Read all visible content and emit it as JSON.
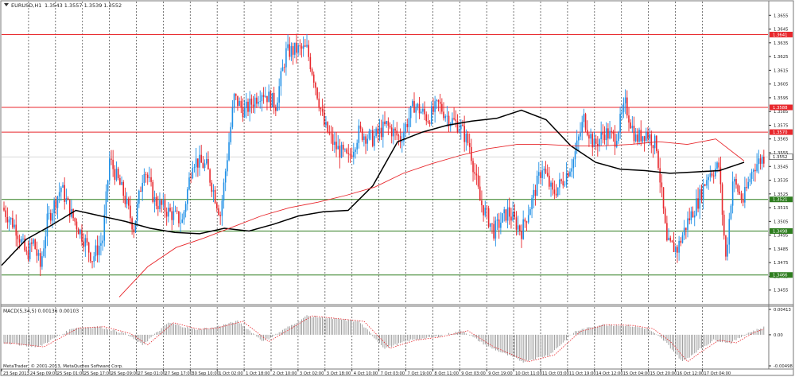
{
  "header": {
    "symbol": "EURUSD,H1",
    "quote": "1.3543 1.3557 1.3539 1.3552"
  },
  "macd_header": "MACD(5,34,5) 0.00136 0.00103",
  "footer": "MetaTrader, © 2001-2013, MetaQuotes Software Corp.",
  "chart_data": [
    {
      "type": "candlestick",
      "panel": "price",
      "ylim": [
        1.3445,
        1.3665
      ],
      "y_ticks": [
        "1.3655",
        "1.3645",
        "1.3635",
        "1.3625",
        "1.3615",
        "1.3605",
        "1.3595",
        "1.3585",
        "1.3575",
        "1.3565",
        "1.3555",
        "1.3545",
        "1.3535",
        "1.3525",
        "1.3515",
        "1.3505",
        "1.3495",
        "1.3485",
        "1.3475",
        "1.3465",
        "1.3455"
      ],
      "x_ticks": [
        "23 Sep 2013",
        "24 Sep 09:00",
        "25 Sep 01:00",
        "25 Sep 17:00",
        "26 Sep 09:00",
        "27 Sep 01:00",
        "27 Sep 17:00",
        "30 Sep 10:00",
        "1 Oct 02:00",
        "1 Oct 18:00",
        "2 Oct 10:00",
        "3 Oct 02:00",
        "3 Oct 18:00",
        "4 Oct 10:00",
        "7 Oct 03:00",
        "7 Oct 19:00",
        "8 Oct 11:00",
        "9 Oct 03:00",
        "9 Oct 19:00",
        "10 Oct 11:00",
        "11 Oct 03:00",
        "11 Oct 19:00",
        "14 Oct 12:00",
        "15 Oct 04:00",
        "15 Oct 20:00",
        "16 Oct 12:00",
        "17 Oct 04:00"
      ],
      "h_lines": [
        {
          "value": 1.3641,
          "label": "1.3641",
          "color": "#e8272c"
        },
        {
          "value": 1.3588,
          "label": "1.3588",
          "color": "#e8272c"
        },
        {
          "value": 1.357,
          "label": "1.3570",
          "color": "#e8272c"
        },
        {
          "value": 1.3521,
          "label": "1.3521",
          "color": "#2e7d1f"
        },
        {
          "value": 1.3498,
          "label": "1.3498",
          "color": "#2e7d1f"
        },
        {
          "value": 1.3466,
          "label": "1.3466",
          "color": "#2e7d1f"
        }
      ],
      "current_price": {
        "value": 1.3552,
        "label": "1.3552"
      },
      "up_color": "#1e8fe6",
      "down_color": "#e8272c",
      "series": [
        {
          "color": "#000000",
          "values": [
            1.3473,
            1.3492,
            1.3502,
            1.3513,
            1.3509,
            1.3505,
            1.35,
            1.3497,
            1.3496,
            1.35,
            1.3498,
            1.3503,
            1.3509,
            1.3512,
            1.3513,
            1.3531,
            1.3563,
            1.357,
            1.3575,
            1.3578,
            1.358,
            1.3586,
            1.3579,
            1.356,
            1.3548,
            1.3543,
            1.3542,
            1.354,
            1.3541,
            1.3542,
            1.3548
          ]
        },
        {
          "color": "#e8272c",
          "values": [
            1.345,
            1.3472,
            1.3486,
            1.3493,
            1.3501,
            1.3509,
            1.3515,
            1.3519,
            1.3524,
            1.353,
            1.354,
            1.3547,
            1.3553,
            1.3558,
            1.3561,
            1.3561,
            1.356,
            1.356,
            1.3561,
            1.3563,
            1.3561,
            1.3565,
            1.3549
          ]
        }
      ]
    },
    {
      "type": "histogram",
      "panel": "macd",
      "name": "MACD(5,34,5)",
      "y_ticks": [
        "0.00413",
        "0.00",
        "-0.00498"
      ],
      "ylim": [
        -0.00498,
        0.00413
      ],
      "bar_color": "#888888",
      "signal_color": "#e8272c"
    }
  ]
}
